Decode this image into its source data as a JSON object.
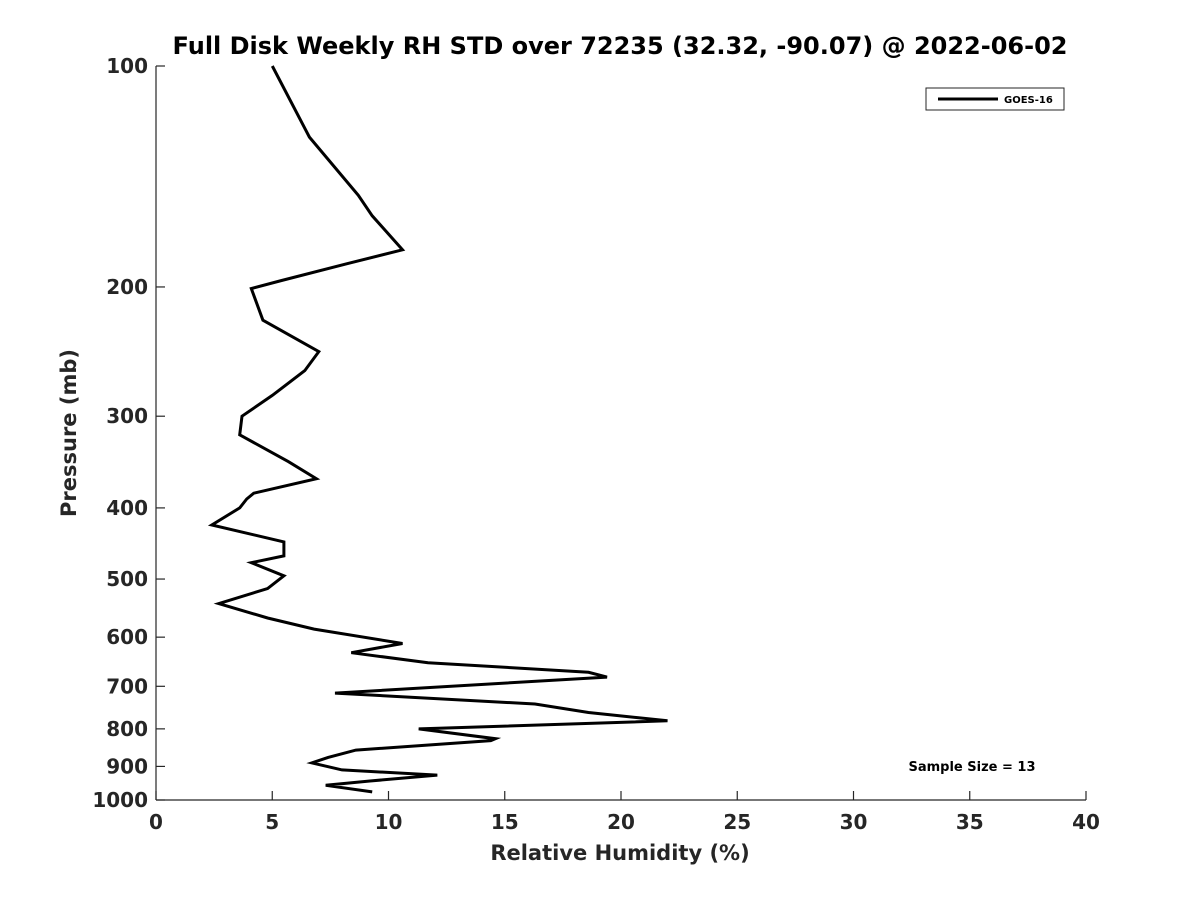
{
  "chart_data": {
    "type": "line",
    "title": "Full Disk Weekly RH STD over 72235 (32.32, -90.07) @ 2022-06-02",
    "xlabel": "Relative Humidity (%)",
    "ylabel": "Pressure (mb)",
    "xlim": [
      0,
      40
    ],
    "ylim": [
      100,
      1000
    ],
    "y_scale": "log",
    "y_reversed": true,
    "x_ticks": [
      0,
      5,
      10,
      15,
      20,
      25,
      30,
      35,
      40
    ],
    "y_ticks": [
      100,
      200,
      300,
      400,
      500,
      600,
      700,
      800,
      900,
      1000
    ],
    "grid": false,
    "legend_position": "top-right",
    "annotation": "Sample Size = 13",
    "series": [
      {
        "name": "GOES-16",
        "color": "#000000",
        "points": [
          [
            5.0,
            100
          ],
          [
            6.6,
            125
          ],
          [
            8.7,
            150
          ],
          [
            9.3,
            160
          ],
          [
            10.6,
            178
          ],
          [
            8.2,
            186
          ],
          [
            5.4,
            196
          ],
          [
            4.1,
            201
          ],
          [
            4.6,
            222
          ],
          [
            7.0,
            245
          ],
          [
            6.4,
            260
          ],
          [
            5.0,
            281
          ],
          [
            3.7,
            300
          ],
          [
            3.6,
            318
          ],
          [
            5.7,
            346
          ],
          [
            6.9,
            365
          ],
          [
            4.2,
            382
          ],
          [
            3.9,
            389
          ],
          [
            3.6,
            400
          ],
          [
            2.4,
            422
          ],
          [
            5.5,
            445
          ],
          [
            5.5,
            465
          ],
          [
            4.1,
            475
          ],
          [
            5.5,
            495
          ],
          [
            4.8,
            515
          ],
          [
            2.7,
            540
          ],
          [
            4.8,
            565
          ],
          [
            6.8,
            585
          ],
          [
            10.6,
            612
          ],
          [
            8.4,
            630
          ],
          [
            11.7,
            650
          ],
          [
            18.6,
            670
          ],
          [
            19.4,
            680
          ],
          [
            7.7,
            715
          ],
          [
            16.3,
            740
          ],
          [
            18.6,
            760
          ],
          [
            22.0,
            780
          ],
          [
            11.3,
            800
          ],
          [
            14.6,
            825
          ],
          [
            14.4,
            830
          ],
          [
            8.6,
            855
          ],
          [
            7.4,
            875
          ],
          [
            6.7,
            890
          ],
          [
            8.0,
            910
          ],
          [
            12.1,
            925
          ],
          [
            9.2,
            942
          ],
          [
            7.3,
            955
          ],
          [
            9.3,
            975
          ]
        ]
      }
    ]
  }
}
